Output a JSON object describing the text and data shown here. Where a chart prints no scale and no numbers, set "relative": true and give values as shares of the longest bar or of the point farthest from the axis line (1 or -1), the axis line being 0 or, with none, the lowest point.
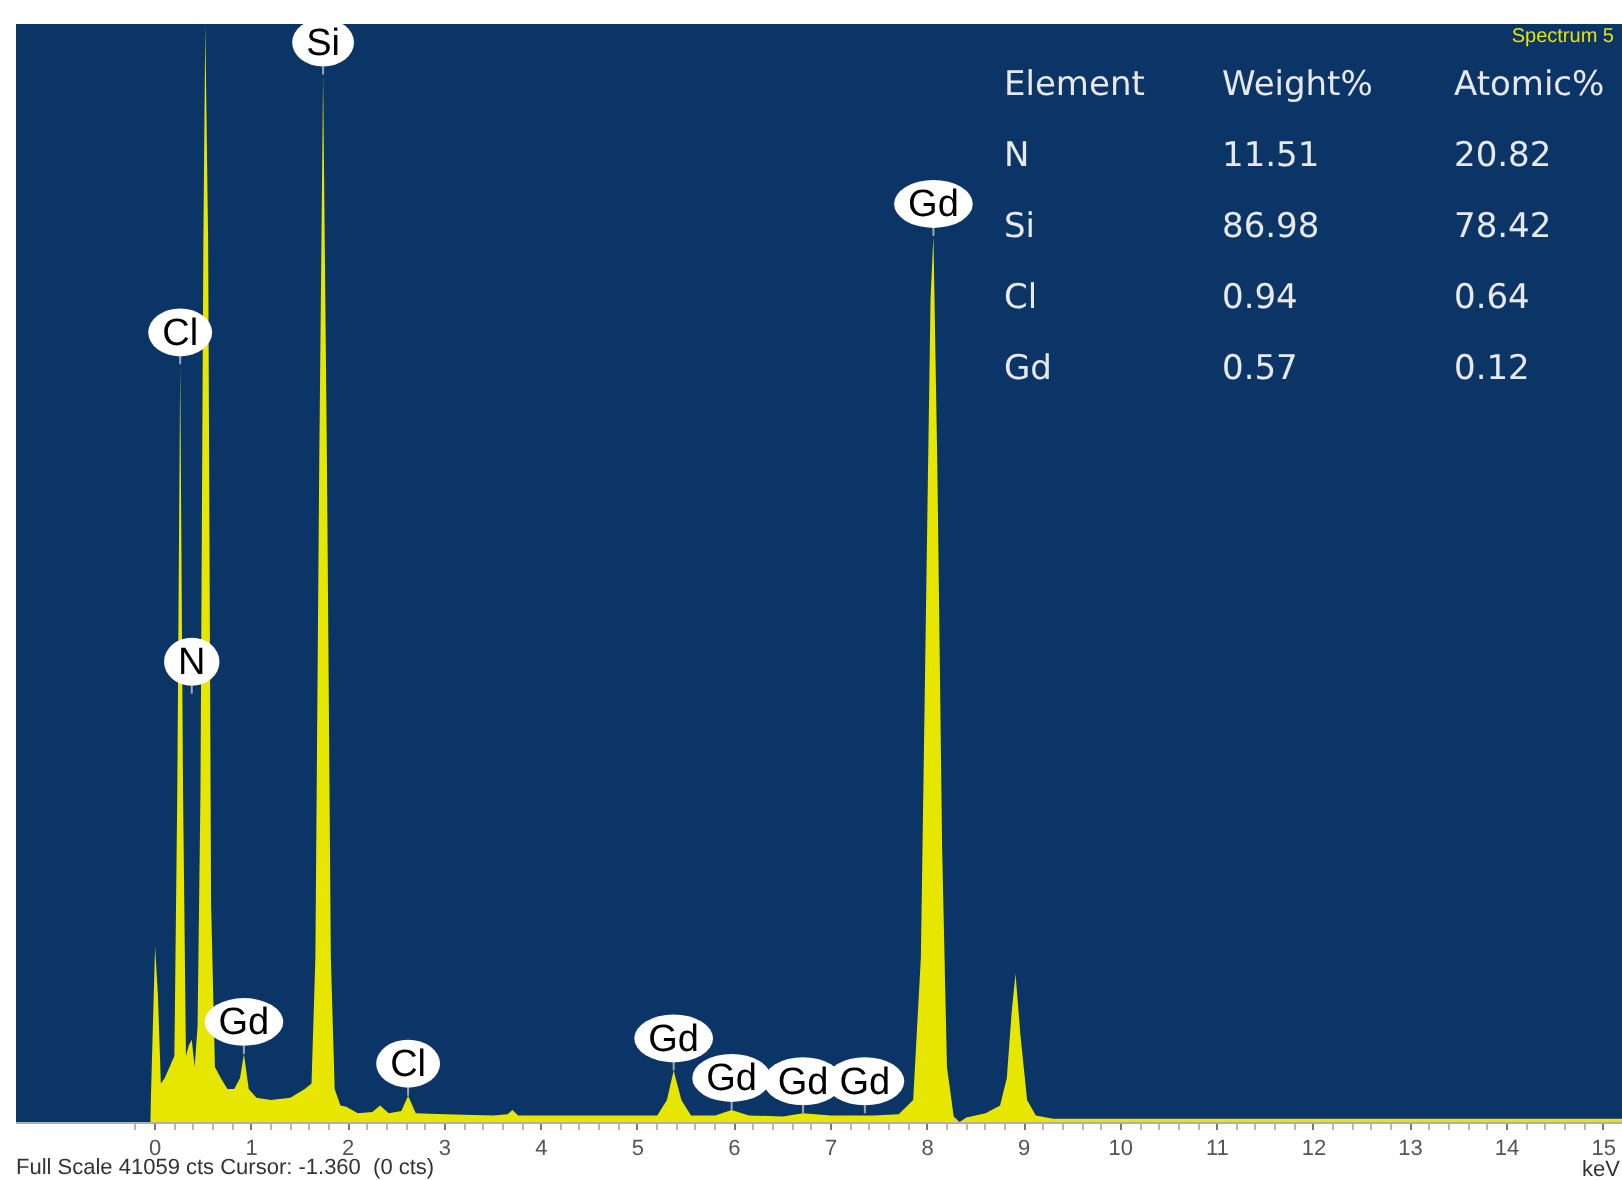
{
  "chart_data": {
    "type": "area",
    "title": "Spectrum 5",
    "xlabel": "keV",
    "relative": true,
    "color": "#e6e600",
    "x": [
      -0.05,
      0.0,
      0.03,
      0.06,
      0.1,
      0.15,
      0.2,
      0.23,
      0.26,
      0.29,
      0.32,
      0.35,
      0.38,
      0.41,
      0.44,
      0.47,
      0.5,
      0.52,
      0.55,
      0.58,
      0.62,
      0.68,
      0.75,
      0.82,
      0.88,
      0.92,
      0.97,
      1.05,
      1.2,
      1.4,
      1.55,
      1.62,
      1.66,
      1.7,
      1.74,
      1.78,
      1.82,
      1.86,
      1.92,
      1.98,
      2.1,
      2.25,
      2.33,
      2.42,
      2.55,
      2.62,
      2.7,
      3.0,
      3.5,
      3.65,
      3.7,
      3.76,
      4.5,
      5.2,
      5.3,
      5.37,
      5.45,
      5.55,
      5.8,
      5.97,
      6.15,
      6.5,
      6.71,
      7.0,
      7.44,
      7.7,
      7.85,
      7.93,
      7.98,
      8.03,
      8.06,
      8.1,
      8.15,
      8.2,
      8.27,
      8.33,
      8.4,
      8.6,
      8.75,
      8.82,
      8.87,
      8.91,
      8.96,
      9.03,
      9.12,
      9.3,
      12.0,
      15.19
    ],
    "values": [
      0,
      0.16,
      0.115,
      0.035,
      0.04,
      0.05,
      0.06,
      0.3,
      0.69,
      0.3,
      0.06,
      0.07,
      0.075,
      0.05,
      0.087,
      0.3,
      0.8,
      1,
      0.8,
      0.2,
      0.05,
      0.04,
      0.03,
      0.03,
      0.04,
      0.062,
      0.03,
      0.022,
      0.02,
      0.022,
      0.03,
      0.035,
      0.15,
      0.6,
      0.954,
      0.6,
      0.15,
      0.03,
      0.015,
      0.014,
      0.008,
      0.009,
      0.015,
      0.008,
      0.01,
      0.024,
      0.008,
      0.007,
      0.006,
      0.007,
      0.011,
      0.006,
      0.006,
      0.006,
      0.02,
      0.047,
      0.02,
      0.006,
      0.006,
      0.011,
      0.006,
      0.005,
      0.008,
      0.006,
      0.006,
      0.007,
      0.02,
      0.15,
      0.45,
      0.75,
      0.807,
      0.6,
      0.25,
      0.05,
      0.005,
      0,
      0.004,
      0.008,
      0.015,
      0.04,
      0.1,
      0.135,
      0.08,
      0.02,
      0.006,
      0.003,
      0.003,
      0.003
    ],
    "xlim": [
      -1.44,
      15.19
    ],
    "xticks": [
      {
        "value": -0.2,
        "label": null
      },
      0,
      {
        "value": 0.2,
        "label": null
      },
      {
        "value": 0.4,
        "label": null
      },
      {
        "value": 0.6,
        "label": null
      },
      {
        "value": 0.8,
        "label": null
      },
      1,
      {
        "value": 1.2,
        "label": null
      },
      {
        "value": 1.4,
        "label": null
      },
      {
        "value": 1.6,
        "label": null
      },
      {
        "value": 1.8,
        "label": null
      },
      2,
      {
        "value": 2.2,
        "label": null
      },
      {
        "value": 2.4,
        "label": null
      },
      {
        "value": 2.6,
        "label": null
      },
      {
        "value": 2.8,
        "label": null
      },
      3,
      {
        "value": 3.2,
        "label": null
      },
      {
        "value": 3.4,
        "label": null
      },
      {
        "value": 3.6,
        "label": null
      },
      {
        "value": 3.8,
        "label": null
      },
      4,
      {
        "value": 4.2,
        "label": null
      },
      {
        "value": 4.4,
        "label": null
      },
      {
        "value": 4.6,
        "label": null
      },
      {
        "value": 4.8,
        "label": null
      },
      5,
      {
        "value": 5.2,
        "label": null
      },
      {
        "value": 5.4,
        "label": null
      },
      {
        "value": 5.6,
        "label": null
      },
      {
        "value": 5.8,
        "label": null
      },
      6,
      {
        "value": 6.2,
        "label": null
      },
      {
        "value": 6.4,
        "label": null
      },
      {
        "value": 6.6,
        "label": null
      },
      {
        "value": 6.8,
        "label": null
      },
      7,
      {
        "value": 7.2,
        "label": null
      },
      {
        "value": 7.4,
        "label": null
      },
      {
        "value": 7.6,
        "label": null
      },
      {
        "value": 7.8,
        "label": null
      },
      8,
      {
        "value": 8.2,
        "label": null
      },
      {
        "value": 8.4,
        "label": null
      },
      {
        "value": 8.6,
        "label": null
      },
      {
        "value": 8.8,
        "label": null
      },
      9,
      {
        "value": 9.2,
        "label": null
      },
      {
        "value": 9.4,
        "label": null
      },
      {
        "value": 9.6,
        "label": null
      },
      {
        "value": 9.8,
        "label": null
      },
      10,
      {
        "value": 10.2,
        "label": null
      },
      {
        "value": 10.4,
        "label": null
      },
      {
        "value": 10.6,
        "label": null
      },
      {
        "value": 10.8,
        "label": null
      },
      11,
      {
        "value": 11.2,
        "label": null
      },
      {
        "value": 11.4,
        "label": null
      },
      {
        "value": 11.6,
        "label": null
      },
      {
        "value": 11.8,
        "label": null
      },
      12,
      {
        "value": 12.2,
        "label": null
      },
      {
        "value": 12.4,
        "label": null
      },
      {
        "value": 12.6,
        "label": null
      },
      {
        "value": 12.8,
        "label": null
      },
      13,
      {
        "value": 13.2,
        "label": null
      },
      {
        "value": 13.4,
        "label": null
      },
      {
        "value": 13.6,
        "label": null
      },
      {
        "value": 13.8,
        "label": null
      },
      14,
      {
        "value": 14.2,
        "label": null
      },
      {
        "value": 14.4,
        "label": null
      },
      {
        "value": 14.6,
        "label": null
      },
      {
        "value": 14.8,
        "label": null
      },
      15
    ],
    "annotations": [
      {
        "text": "Cl",
        "x": 0.26,
        "y": 0.69
      },
      {
        "text": "N",
        "x": 0.38,
        "y": 0.39
      },
      {
        "text": "Si",
        "x": 1.74,
        "y": 0.954
      },
      {
        "text": "Gd",
        "x": 0.92,
        "y": 0.062
      },
      {
        "text": "Cl",
        "x": 2.62,
        "y": 0.024
      },
      {
        "text": "Gd",
        "x": 5.37,
        "y": 0.047
      },
      {
        "text": "Gd",
        "x": 5.97,
        "y": 0.011
      },
      {
        "text": "Gd",
        "x": 6.71,
        "y": 0.008
      },
      {
        "text": "Gd",
        "x": 7.35,
        "y": 0.008
      },
      {
        "text": "Gd",
        "x": 8.06,
        "y": 0.807
      },
      "Element",
      "Weight%",
      "Atomic%",
      "N",
      "11.51",
      "20.82",
      "Si",
      "86.98",
      "78.42",
      "Cl",
      "0.94",
      "0.64",
      "Gd",
      "0.57",
      "0.12",
      "Full Scale 41059 cts Cursor: -1.360  (0 cts)"
    ]
  }
}
